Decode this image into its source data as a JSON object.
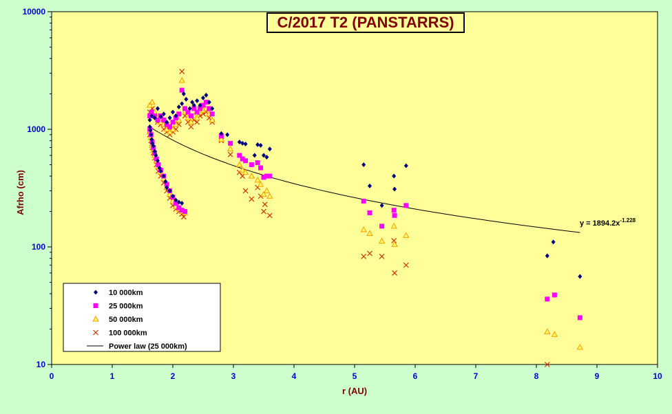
{
  "chart_data": {
    "type": "scatter",
    "title": "C/2017 T2 (PANSTARRS)",
    "xlabel": "r (AU)",
    "ylabel": "Afrho (cm)",
    "xlim": [
      0,
      10
    ],
    "ylim": [
      10,
      10000
    ],
    "yscale": "log",
    "x_ticks": [
      "0",
      "1",
      "2",
      "3",
      "4",
      "5",
      "6",
      "7",
      "8",
      "9",
      "10"
    ],
    "y_ticks": [
      "10",
      "100",
      "1000",
      "10000"
    ],
    "grid": false,
    "legend_position": "bottom-left",
    "colors": {
      "plot_bg": "#ffff99",
      "page_bg": "#ccffcc",
      "title": "#800000",
      "ticks": "#0000cc"
    },
    "series": [
      {
        "name": "10 000km",
        "marker": "diamond",
        "color": "#000080",
        "points": [
          [
            1.62,
            1050
          ],
          [
            1.63,
            980
          ],
          [
            1.64,
            900
          ],
          [
            1.65,
            820
          ],
          [
            1.66,
            760
          ],
          [
            1.68,
            720
          ],
          [
            1.7,
            650
          ],
          [
            1.72,
            600
          ],
          [
            1.75,
            540
          ],
          [
            1.78,
            470
          ],
          [
            1.8,
            440
          ],
          [
            1.85,
            400
          ],
          [
            1.88,
            360
          ],
          [
            1.9,
            320
          ],
          [
            1.95,
            300
          ],
          [
            2.0,
            270
          ],
          [
            2.05,
            250
          ],
          [
            2.1,
            240
          ],
          [
            2.15,
            235
          ],
          [
            1.62,
            1200
          ],
          [
            1.65,
            1300
          ],
          [
            1.7,
            1250
          ],
          [
            1.75,
            1500
          ],
          [
            1.8,
            1280
          ],
          [
            1.85,
            1350
          ],
          [
            1.9,
            1150
          ],
          [
            1.95,
            1250
          ],
          [
            2.0,
            1400
          ],
          [
            2.05,
            1300
          ],
          [
            2.1,
            1550
          ],
          [
            2.15,
            1650
          ],
          [
            2.18,
            2000
          ],
          [
            2.22,
            1800
          ],
          [
            2.28,
            1500
          ],
          [
            2.32,
            1700
          ],
          [
            2.35,
            1600
          ],
          [
            2.4,
            1750
          ],
          [
            2.45,
            1600
          ],
          [
            2.5,
            1850
          ],
          [
            2.55,
            1950
          ],
          [
            2.6,
            1700
          ],
          [
            2.65,
            1500
          ],
          [
            2.8,
            920
          ],
          [
            2.9,
            900
          ],
          [
            3.1,
            780
          ],
          [
            3.15,
            760
          ],
          [
            3.2,
            750
          ],
          [
            3.35,
            600
          ],
          [
            3.4,
            740
          ],
          [
            3.45,
            730
          ],
          [
            3.5,
            600
          ],
          [
            3.55,
            580
          ],
          [
            3.6,
            680
          ],
          [
            5.15,
            500
          ],
          [
            5.25,
            330
          ],
          [
            5.45,
            225
          ],
          [
            5.65,
            400
          ],
          [
            5.66,
            310
          ],
          [
            5.85,
            490
          ],
          [
            8.18,
            84
          ],
          [
            8.28,
            110
          ],
          [
            8.72,
            56
          ]
        ]
      },
      {
        "name": "25 000km",
        "marker": "square",
        "color": "#ff00ff",
        "points": [
          [
            1.62,
            1000
          ],
          [
            1.64,
            900
          ],
          [
            1.66,
            780
          ],
          [
            1.68,
            700
          ],
          [
            1.7,
            630
          ],
          [
            1.73,
            560
          ],
          [
            1.76,
            500
          ],
          [
            1.8,
            450
          ],
          [
            1.85,
            400
          ],
          [
            1.9,
            340
          ],
          [
            1.95,
            300
          ],
          [
            2.0,
            265
          ],
          [
            2.05,
            235
          ],
          [
            2.1,
            215
          ],
          [
            2.15,
            205
          ],
          [
            2.2,
            200
          ],
          [
            1.62,
            1300
          ],
          [
            1.65,
            1400
          ],
          [
            1.7,
            1300
          ],
          [
            1.75,
            1200
          ],
          [
            1.8,
            1300
          ],
          [
            1.85,
            1200
          ],
          [
            1.9,
            1100
          ],
          [
            1.95,
            1050
          ],
          [
            2.0,
            1150
          ],
          [
            2.05,
            1250
          ],
          [
            2.1,
            1350
          ],
          [
            2.15,
            2150
          ],
          [
            2.2,
            1500
          ],
          [
            2.25,
            1400
          ],
          [
            2.3,
            1300
          ],
          [
            2.35,
            1500
          ],
          [
            2.4,
            1400
          ],
          [
            2.45,
            1500
          ],
          [
            2.5,
            1600
          ],
          [
            2.55,
            1700
          ],
          [
            2.6,
            1500
          ],
          [
            2.65,
            1350
          ],
          [
            2.8,
            880
          ],
          [
            2.95,
            760
          ],
          [
            3.1,
            600
          ],
          [
            3.15,
            560
          ],
          [
            3.2,
            540
          ],
          [
            3.3,
            500
          ],
          [
            3.4,
            520
          ],
          [
            3.45,
            470
          ],
          [
            3.5,
            390
          ],
          [
            3.55,
            400
          ],
          [
            3.6,
            400
          ],
          [
            5.15,
            245
          ],
          [
            5.25,
            195
          ],
          [
            5.45,
            150
          ],
          [
            5.65,
            205
          ],
          [
            5.66,
            185
          ],
          [
            5.85,
            225
          ],
          [
            8.18,
            36
          ],
          [
            8.3,
            39
          ],
          [
            8.72,
            25
          ]
        ]
      },
      {
        "name": "50 000km",
        "marker": "triangle",
        "color": "#ff9900",
        "points": [
          [
            1.62,
            950
          ],
          [
            1.64,
            850
          ],
          [
            1.66,
            730
          ],
          [
            1.68,
            660
          ],
          [
            1.7,
            600
          ],
          [
            1.73,
            540
          ],
          [
            1.76,
            480
          ],
          [
            1.8,
            430
          ],
          [
            1.85,
            380
          ],
          [
            1.9,
            320
          ],
          [
            1.95,
            280
          ],
          [
            2.0,
            245
          ],
          [
            2.05,
            220
          ],
          [
            2.1,
            210
          ],
          [
            2.15,
            200
          ],
          [
            2.2,
            195
          ],
          [
            1.62,
            1600
          ],
          [
            1.66,
            1700
          ],
          [
            1.7,
            1400
          ],
          [
            1.75,
            1250
          ],
          [
            1.8,
            1150
          ],
          [
            1.85,
            1100
          ],
          [
            1.9,
            1000
          ],
          [
            1.95,
            950
          ],
          [
            2.0,
            1000
          ],
          [
            2.05,
            1100
          ],
          [
            2.1,
            1200
          ],
          [
            2.15,
            2600
          ],
          [
            2.2,
            1400
          ],
          [
            2.25,
            1250
          ],
          [
            2.3,
            1150
          ],
          [
            2.35,
            1300
          ],
          [
            2.4,
            1250
          ],
          [
            2.45,
            1400
          ],
          [
            2.5,
            1450
          ],
          [
            2.55,
            1500
          ],
          [
            2.6,
            1350
          ],
          [
            2.65,
            1200
          ],
          [
            2.8,
            820
          ],
          [
            2.95,
            680
          ],
          [
            3.1,
            500
          ],
          [
            3.15,
            450
          ],
          [
            3.2,
            430
          ],
          [
            3.3,
            400
          ],
          [
            3.4,
            370
          ],
          [
            3.45,
            340
          ],
          [
            3.5,
            280
          ],
          [
            3.55,
            300
          ],
          [
            3.6,
            270
          ],
          [
            5.15,
            140
          ],
          [
            5.25,
            130
          ],
          [
            5.45,
            112
          ],
          [
            5.65,
            150
          ],
          [
            5.66,
            105
          ],
          [
            5.85,
            125
          ],
          [
            8.18,
            19
          ],
          [
            8.3,
            18
          ],
          [
            8.72,
            14
          ]
        ]
      },
      {
        "name": "100 000km",
        "marker": "x",
        "color": "#cc3300",
        "points": [
          [
            1.62,
            900
          ],
          [
            1.64,
            800
          ],
          [
            1.66,
            700
          ],
          [
            1.68,
            630
          ],
          [
            1.7,
            570
          ],
          [
            1.73,
            500
          ],
          [
            1.76,
            440
          ],
          [
            1.8,
            400
          ],
          [
            1.85,
            350
          ],
          [
            1.9,
            300
          ],
          [
            1.95,
            260
          ],
          [
            2.0,
            225
          ],
          [
            2.05,
            210
          ],
          [
            2.1,
            200
          ],
          [
            2.15,
            190
          ],
          [
            2.18,
            180
          ],
          [
            1.62,
            1400
          ],
          [
            1.66,
            1500
          ],
          [
            1.7,
            1300
          ],
          [
            1.75,
            1150
          ],
          [
            1.8,
            1100
          ],
          [
            1.85,
            1000
          ],
          [
            1.9,
            950
          ],
          [
            1.95,
            900
          ],
          [
            2.0,
            950
          ],
          [
            2.05,
            1000
          ],
          [
            2.1,
            1100
          ],
          [
            2.15,
            3100
          ],
          [
            2.2,
            1300
          ],
          [
            2.25,
            1150
          ],
          [
            2.3,
            1050
          ],
          [
            2.35,
            1200
          ],
          [
            2.4,
            1150
          ],
          [
            2.45,
            1300
          ],
          [
            2.5,
            1350
          ],
          [
            2.55,
            1400
          ],
          [
            2.6,
            1250
          ],
          [
            2.65,
            1150
          ],
          [
            2.8,
            800
          ],
          [
            2.95,
            610
          ],
          [
            3.1,
            430
          ],
          [
            3.15,
            400
          ],
          [
            3.2,
            300
          ],
          [
            3.3,
            255
          ],
          [
            3.4,
            320
          ],
          [
            3.45,
            270
          ],
          [
            3.5,
            200
          ],
          [
            3.52,
            230
          ],
          [
            3.6,
            185
          ],
          [
            5.15,
            83
          ],
          [
            5.25,
            88
          ],
          [
            5.45,
            83
          ],
          [
            5.65,
            113
          ],
          [
            5.66,
            60
          ],
          [
            5.85,
            70
          ],
          [
            8.18,
            10
          ]
        ]
      }
    ],
    "trendline": {
      "name": "Power law (25 000km)",
      "coefficient": 1894.2,
      "exponent": -1.228,
      "x_range": [
        1.6,
        8.72
      ],
      "equation_base": "y = 1894.2x",
      "equation_exp": "-1.228"
    }
  }
}
